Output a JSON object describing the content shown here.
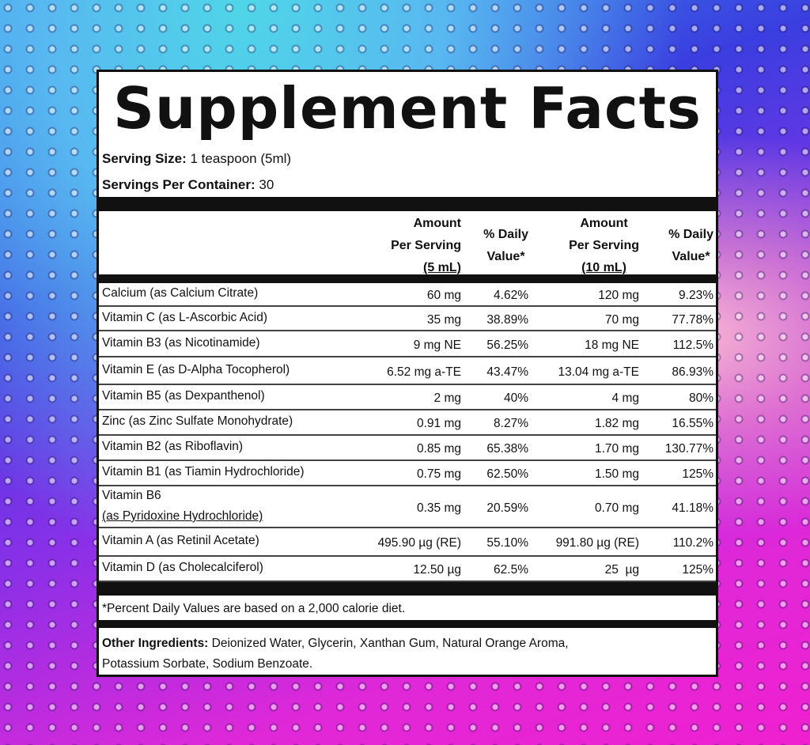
{
  "title": "Supplement Facts",
  "serving_size": {
    "label": "Serving Size:",
    "value": "1 teaspoon (5ml)"
  },
  "servings_per_container": {
    "label": "Servings Per Container:",
    "value": "30"
  },
  "headers": {
    "amount_5": [
      "Amount",
      "Per Serving",
      "(5 mL)"
    ],
    "dv_5": [
      "% Daily",
      "Value*"
    ],
    "amount_10": [
      "Amount",
      "Per Serving",
      "(10 mL)"
    ],
    "dv_10": [
      "% Daily",
      "Value*"
    ]
  },
  "rows": [
    {
      "name": "Calcium (as Calcium Citrate)",
      "a5": "60 mg",
      "dv5": "4.62%",
      "a10": "120 mg",
      "dv10": "9.23%"
    },
    {
      "name": "Vitamin C (as L-Ascorbic Acid)",
      "a5": "35 mg",
      "dv5": "38.89%",
      "a10": "70 mg",
      "dv10": "77.78%"
    },
    {
      "name": "Vitamin B3 (as Nicotinamide)",
      "a5": "9 mg NE",
      "dv5": "56.25%",
      "a10": "18 mg NE",
      "dv10": "112.5%"
    },
    {
      "name": "Vitamin E (as D-Alpha Tocopherol)",
      "a5": "6.52 mg a-TE",
      "dv5": "43.47%",
      "a10": "13.04 mg a-TE",
      "dv10": "86.93%"
    },
    {
      "name": "Vitamin B5 (as Dexpanthenol)",
      "a5": "2 mg",
      "dv5": "40%",
      "a10": "4 mg",
      "dv10": "80%"
    },
    {
      "name": "Zinc (as Zinc Sulfate Monohydrate)",
      "a5": "0.91 mg",
      "dv5": "8.27%",
      "a10": "1.82 mg",
      "dv10": "16.55%"
    },
    {
      "name": "Vitamin B2 (as Riboflavin)",
      "a5": "0.85 mg",
      "dv5": "65.38%",
      "a10": "1.70 mg",
      "dv10": "130.77%"
    },
    {
      "name": "Vitamin B1 (as Tiamin Hydrochloride)",
      "a5": "0.75 mg",
      "dv5": "62.50%",
      "a10": "1.50 mg",
      "dv10": "125%"
    },
    {
      "name": "Vitamin B6",
      "name2": "(as Pyridoxine Hydrochloride)",
      "a5": "0.35 mg",
      "dv5": "20.59%",
      "a10": "0.70 mg",
      "dv10": "41.18%"
    },
    {
      "name": "Vitamin A (as Retinil Acetate)",
      "a5": "495.90 µg (RE)",
      "dv5": "55.10%",
      "a10": "991.80 µg (RE)",
      "dv10": "110.2%"
    },
    {
      "name": "Vitamin D (as Cholecalciferol)",
      "a5": "12.50 µg",
      "dv5": "62.5%",
      "a10": "25  µg",
      "dv10": "125%"
    }
  ],
  "footnote": "*Percent Daily Values are based on a 2,000 calorie diet.",
  "other": {
    "label": "Other Ingredients:",
    "line1": "Deionized Water, Glycerin, Xanthan Gum, Natural Orange Aroma,",
    "line2": "Potassium Sorbate,  Sodium Benzoate."
  }
}
